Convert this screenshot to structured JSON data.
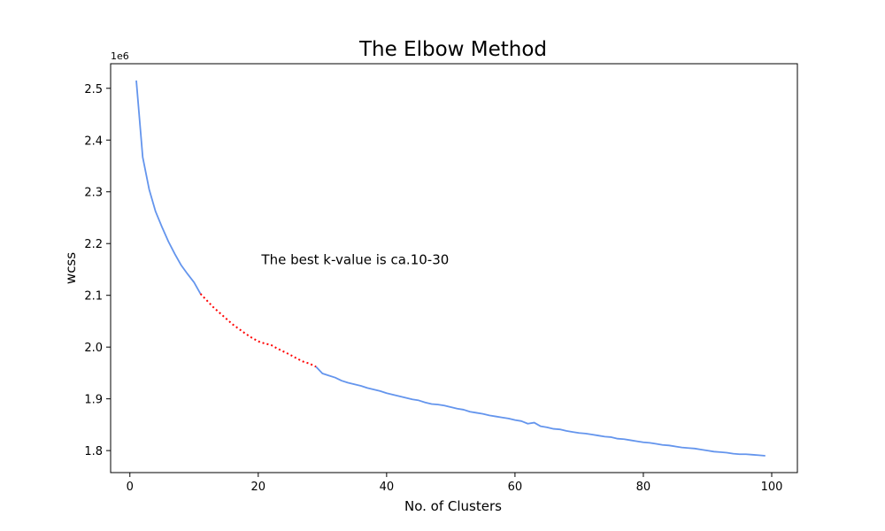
{
  "chart_data": {
    "type": "line",
    "title": "The Elbow Method",
    "xlabel": "No. of Clusters",
    "ylabel": "wcss",
    "y_offset_label": "1e6",
    "y_scale_factor": 1000000,
    "xlim": [
      -3,
      104
    ],
    "ylim": [
      1.7575,
      2.5475
    ],
    "x_ticks": [
      0,
      20,
      40,
      60,
      80,
      100
    ],
    "y_ticks": [
      1.8,
      1.9,
      2.0,
      2.1,
      2.2,
      2.3,
      2.4,
      2.5
    ],
    "grid": false,
    "annotation": {
      "text": "The best k-value is ca.10-30",
      "x": 20.5,
      "y": 2.16
    },
    "series": [
      {
        "color": "#6495ed",
        "style": "solid",
        "x": [
          1,
          2,
          3,
          4,
          5,
          6,
          7,
          8,
          9,
          10,
          11
        ],
        "y": [
          2.515,
          2.367,
          2.305,
          2.262,
          2.232,
          2.204,
          2.18,
          2.158,
          2.141,
          2.125,
          2.103
        ]
      },
      {
        "color": "#ff0000",
        "style": "dotted",
        "x": [
          11,
          12,
          13,
          14,
          15,
          16,
          17,
          18,
          19,
          20,
          21,
          22,
          23,
          24,
          25,
          26,
          27,
          28,
          29
        ],
        "y": [
          2.103,
          2.09,
          2.077,
          2.066,
          2.055,
          2.044,
          2.035,
          2.026,
          2.018,
          2.011,
          2.007,
          2.004,
          1.997,
          1.991,
          1.985,
          1.978,
          1.972,
          1.968,
          1.962
        ]
      },
      {
        "color": "#6495ed",
        "style": "solid",
        "x": [
          29,
          30,
          31,
          32,
          33,
          34,
          35,
          36,
          37,
          38,
          39,
          40,
          41,
          42,
          43,
          44,
          45,
          46,
          47,
          48,
          49,
          50,
          51,
          52,
          53,
          54,
          55,
          56,
          57,
          58,
          59,
          60,
          61,
          62,
          63,
          64,
          65,
          66,
          67,
          68,
          69,
          70,
          71,
          72,
          73,
          74,
          75,
          76,
          77,
          78,
          79,
          80,
          81,
          82,
          83,
          84,
          85,
          86,
          87,
          88,
          89,
          90,
          91,
          92,
          93,
          94,
          95,
          96,
          97,
          98,
          99
        ],
        "y": [
          1.962,
          1.949,
          1.945,
          1.941,
          1.935,
          1.931,
          1.928,
          1.925,
          1.921,
          1.918,
          1.915,
          1.911,
          1.908,
          1.905,
          1.902,
          1.899,
          1.897,
          1.893,
          1.89,
          1.889,
          1.887,
          1.884,
          1.881,
          1.879,
          1.875,
          1.873,
          1.871,
          1.868,
          1.866,
          1.864,
          1.862,
          1.859,
          1.857,
          1.852,
          1.854,
          1.847,
          1.845,
          1.842,
          1.841,
          1.838,
          1.836,
          1.834,
          1.833,
          1.831,
          1.829,
          1.827,
          1.826,
          1.823,
          1.822,
          1.82,
          1.818,
          1.816,
          1.815,
          1.813,
          1.811,
          1.81,
          1.808,
          1.806,
          1.805,
          1.804,
          1.802,
          1.8,
          1.798,
          1.797,
          1.796,
          1.794,
          1.793,
          1.793,
          1.792,
          1.791,
          1.79
        ]
      }
    ]
  }
}
